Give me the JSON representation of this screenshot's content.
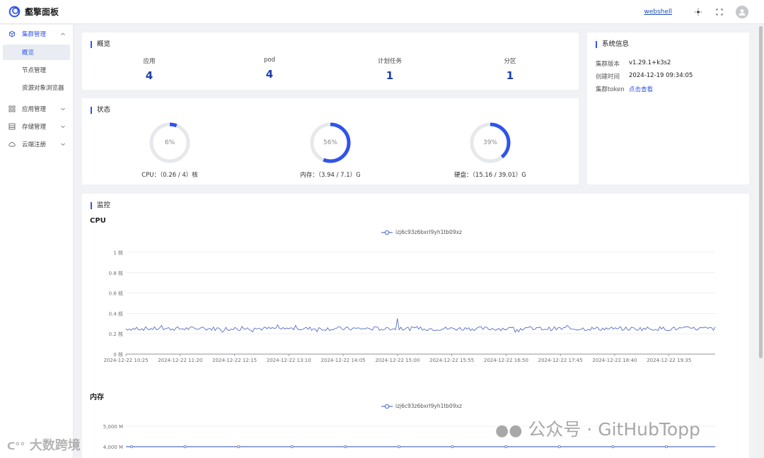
{
  "app": {
    "title": "壑擎面板"
  },
  "header": {
    "webshell_label": "webshell"
  },
  "sidebar": {
    "groups": [
      {
        "label": "集群管理",
        "icon": "cube-icon",
        "sub": [
          {
            "label": "概览",
            "active": true
          },
          {
            "label": "节点管理"
          },
          {
            "label": "资源对象浏览器"
          }
        ]
      },
      {
        "label": "应用管理",
        "icon": "grid-icon"
      },
      {
        "label": "存储管理",
        "icon": "list-icon"
      },
      {
        "label": "云端注册",
        "icon": "cloud-icon"
      }
    ]
  },
  "overview": {
    "title": "概览",
    "stats": [
      {
        "label": "应用",
        "value": "4"
      },
      {
        "label": "pod",
        "value": "4"
      },
      {
        "label": "计划任务",
        "value": "1"
      },
      {
        "label": "分区",
        "value": "1"
      }
    ]
  },
  "status": {
    "title": "状态",
    "gauges": [
      {
        "percent_text": "6%",
        "percent": 6,
        "caption": "CPU：（0.26 / 4）核"
      },
      {
        "percent_text": "56%",
        "percent": 56,
        "caption": "内存：（3.94 / 7.1）G"
      },
      {
        "percent_text": "39%",
        "percent": 39,
        "caption": "硬盘：（15.16 / 39.01）G"
      }
    ]
  },
  "sysinfo": {
    "title": "系统信息",
    "rows": [
      {
        "key": "集群版本",
        "value": "v1.29.1+k3s2"
      },
      {
        "key": "创建时间",
        "value": "2024-12-19 09:34:05"
      },
      {
        "key": "集群token",
        "value": "点击查看"
      }
    ]
  },
  "monitor": {
    "title": "监控",
    "cpu_label": "CPU",
    "mem_label": "内存"
  },
  "chart_data": [
    {
      "type": "line",
      "title": "CPU",
      "series": [
        {
          "name": "izj6c93z6bxrl9yh1tb09xz",
          "color": "#5470c6"
        }
      ],
      "y_ticks": [
        "0 核",
        "0.2 核",
        "0.4 核",
        "0.6 核",
        "0.8 核",
        "1 核"
      ],
      "ylim": [
        0,
        1
      ],
      "x_ticks": [
        "2024-12-22 10:25",
        "2024-12-22 11:20",
        "2024-12-22 12:15",
        "2024-12-22 13:10",
        "2024-12-22 14:05",
        "2024-12-22 15:00",
        "2024-12-22 15:55",
        "2024-12-22 16:50",
        "2024-12-22 17:45",
        "2024-12-22 18:40",
        "2024-12-22 19:35"
      ],
      "approx_level": 0.25,
      "peak": {
        "x": "2024-12-22 15:00",
        "y": 0.35
      }
    },
    {
      "type": "line",
      "title": "内存",
      "series": [
        {
          "name": "izj6c93z6bxrl9yh1tb09xz",
          "color": "#5470c6"
        }
      ],
      "y_ticks": [
        "4,000 M",
        "5,000 M"
      ],
      "approx_level": 4000
    }
  ],
  "watermarks": {
    "left": "大数跨境",
    "right": "公众号 · GitHubTopp"
  }
}
